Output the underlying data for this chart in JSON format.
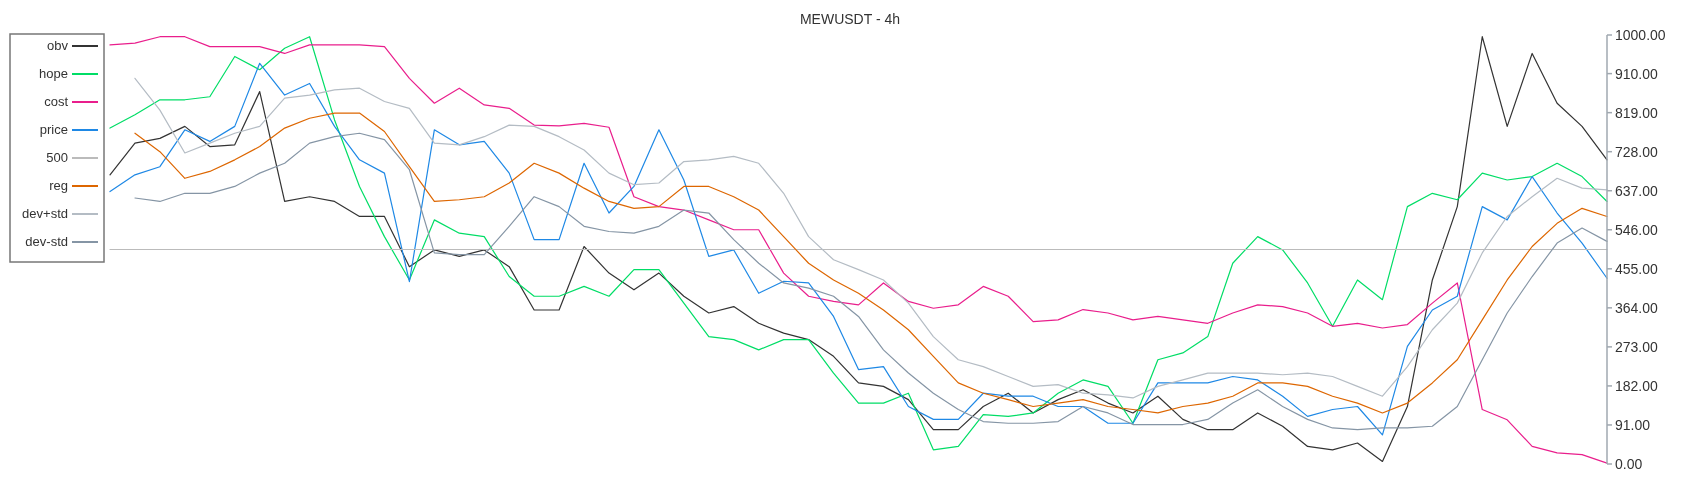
{
  "chart_data": {
    "type": "line",
    "title": "MEWUSDT - 4h",
    "categories": [
      null,
      null,
      null,
      null,
      null,
      null,
      null,
      null,
      null,
      null,
      null,
      null,
      null,
      null,
      null,
      null,
      null,
      null,
      null,
      null,
      null,
      null,
      null,
      null,
      null,
      null,
      null,
      null,
      null,
      null,
      null,
      null,
      null,
      null,
      null,
      null,
      null,
      null,
      null,
      null,
      null,
      null,
      null,
      null,
      null,
      null,
      null,
      null,
      null,
      null,
      null,
      null,
      null,
      null,
      null,
      null,
      null,
      null,
      null,
      null,
      null
    ],
    "series": [
      {
        "name": "obv",
        "color": "#333333",
        "values": [
          674,
          748,
          759,
          787,
          740,
          744,
          868,
          612,
          623,
          612,
          577,
          577,
          460,
          499,
          484,
          499,
          460,
          359,
          359,
          507,
          445,
          406,
          445,
          391,
          352,
          367,
          328,
          305,
          290,
          251,
          189,
          181,
          150,
          80,
          80,
          134,
          165,
          119,
          150,
          173,
          142,
          119,
          158,
          104,
          80,
          80,
          119,
          88,
          41,
          33,
          49,
          6,
          134,
          429,
          600,
          996,
          787,
          957,
          841,
          787,
          709
        ]
      },
      {
        "name": "hope",
        "color": "#00dd66",
        "values": [
          783,
          814,
          849,
          849,
          856,
          950,
          919,
          969,
          996,
          802,
          647,
          530,
          429,
          569,
          538,
          530,
          437,
          391,
          391,
          414,
          391,
          453,
          453,
          375,
          297,
          290,
          266,
          290,
          290,
          212,
          142,
          142,
          165,
          33,
          41,
          115,
          111,
          119,
          165,
          196,
          181,
          95,
          243,
          259,
          297,
          468,
          530,
          499,
          422,
          321,
          429,
          383,
          600,
          631,
          616,
          678,
          662,
          670,
          701,
          670,
          612
        ]
      },
      {
        "name": "cost",
        "color": "#e91e8c",
        "values": [
          977,
          981,
          996,
          996,
          973,
          973,
          973,
          957,
          977,
          977,
          977,
          973,
          899,
          841,
          876,
          837,
          829,
          790,
          788,
          794,
          785,
          623,
          600,
          592,
          569,
          546,
          546,
          445,
          391,
          379,
          371,
          422,
          379,
          363,
          371,
          414,
          391,
          332,
          336,
          360,
          352,
          336,
          344,
          336,
          328,
          352,
          371,
          367,
          352,
          321,
          328,
          317,
          325,
          375,
          422,
          127,
          103,
          41,
          26,
          22,
          2
        ]
      },
      {
        "name": "price",
        "color": "#1e88e5",
        "values": [
          635,
          674,
          693,
          779,
          752,
          787,
          934,
          860,
          887,
          787,
          709,
          678,
          425,
          779,
          744,
          752,
          678,
          523,
          523,
          701,
          585,
          647,
          779,
          662,
          484,
          499,
          398,
          426,
          422,
          344,
          220,
          227,
          134,
          104,
          104,
          165,
          158,
          158,
          134,
          134,
          95,
          95,
          189,
          189,
          189,
          204,
          196,
          158,
          111,
          127,
          134,
          68,
          274,
          359,
          391,
          600,
          569,
          670,
          585,
          515,
          433
        ]
      },
      {
        "name": "500",
        "color": "#bbbbbb",
        "values": [
          500,
          500,
          500,
          500,
          500,
          500,
          500,
          500,
          500,
          500,
          500,
          500,
          500,
          500,
          500,
          500,
          500,
          500,
          500,
          500,
          500,
          500,
          500,
          500,
          500,
          500,
          500,
          500,
          500,
          500,
          500,
          500,
          500,
          500,
          500,
          500,
          500,
          500,
          500,
          500,
          500,
          500,
          500,
          500,
          500,
          500,
          500,
          500,
          500,
          500,
          500,
          500,
          500,
          500,
          500,
          500,
          500,
          500,
          500,
          500,
          500
        ]
      },
      {
        "name": "reg",
        "color": "#dd6600",
        "values": [
          null,
          771,
          728,
          666,
          682,
          709,
          740,
          783,
          806,
          818,
          818,
          775,
          693,
          612,
          616,
          623,
          655,
          701,
          678,
          643,
          612,
          596,
          600,
          647,
          647,
          623,
          592,
          530,
          468,
          429,
          398,
          359,
          313,
          251,
          189,
          165,
          150,
          134,
          142,
          150,
          134,
          127,
          119,
          134,
          142,
          158,
          189,
          189,
          181,
          158,
          142,
          119,
          142,
          189,
          243,
          336,
          429,
          507,
          561,
          596,
          577
        ]
      },
      {
        "name": "dev+std",
        "color": "#b4bcc4",
        "values": [
          null,
          899,
          825,
          725,
          748,
          771,
          787,
          853,
          860,
          872,
          876,
          845,
          829,
          748,
          744,
          763,
          790,
          787,
          763,
          732,
          678,
          651,
          655,
          705,
          709,
          717,
          701,
          631,
          530,
          476,
          453,
          429,
          375,
          297,
          243,
          227,
          204,
          181,
          185,
          165,
          161,
          154,
          181,
          196,
          212,
          212,
          212,
          208,
          212,
          204,
          181,
          158,
          227,
          313,
          375,
          492,
          577,
          623,
          666,
          643,
          639
        ]
      },
      {
        "name": "dev-std",
        "color": "#8595a5",
        "values": [
          null,
          620,
          612,
          631,
          631,
          647,
          678,
          701,
          748,
          763,
          771,
          756,
          686,
          492,
          488,
          488,
          554,
          623,
          600,
          554,
          542,
          538,
          554,
          592,
          585,
          523,
          468,
          422,
          410,
          391,
          344,
          266,
          212,
          165,
          127,
          99,
          95,
          95,
          99,
          134,
          119,
          92,
          92,
          92,
          104,
          142,
          173,
          134,
          104,
          84,
          80,
          84,
          84,
          88,
          134,
          243,
          352,
          437,
          515,
          550,
          519
        ]
      }
    ],
    "ylim": [
      0,
      1000
    ],
    "yticks": [
      {
        "value": 0,
        "label": "0.00"
      },
      {
        "value": 91,
        "label": "91.00"
      },
      {
        "value": 182,
        "label": "182.00"
      },
      {
        "value": 273,
        "label": "273.00"
      },
      {
        "value": 364,
        "label": "364.00"
      },
      {
        "value": 455,
        "label": "455.00"
      },
      {
        "value": 546,
        "label": "546.00"
      },
      {
        "value": 637,
        "label": "637.00"
      },
      {
        "value": 728,
        "label": "728.00"
      },
      {
        "value": 819,
        "label": "819.00"
      },
      {
        "value": 910,
        "label": "910.00"
      },
      {
        "value": 1000,
        "label": "1000.00"
      }
    ],
    "tick_labels": "y",
    "legend": "top left",
    "grid": false
  }
}
